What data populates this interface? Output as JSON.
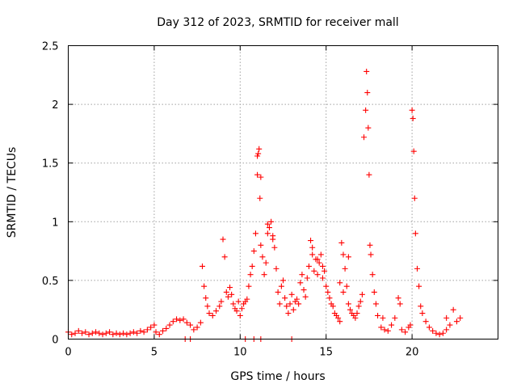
{
  "chart_data": {
    "type": "scatter",
    "title": "Day 312 of 2023, SRMTID for receiver mall",
    "xlabel": "GPS time / hours",
    "ylabel": "SRMTID / TECUs",
    "xlim": [
      0,
      25
    ],
    "ylim": [
      0,
      2.5
    ],
    "xticks": [
      0,
      5,
      10,
      15,
      20
    ],
    "yticks": [
      0,
      0.5,
      1,
      1.5,
      2,
      2.5
    ],
    "xtick_labels": [
      "0",
      "5",
      "10",
      "15",
      "20"
    ],
    "ytick_labels": [
      "0",
      "0.5",
      "1",
      "1.5",
      "2",
      "2.5"
    ],
    "grid": true,
    "marker": "+",
    "series": [
      {
        "name": "SRMTID",
        "color": "#ff0000",
        "x": [
          0.0,
          0.2,
          0.4,
          0.6,
          0.8,
          1.0,
          1.2,
          1.4,
          1.6,
          1.8,
          2.0,
          2.2,
          2.4,
          2.6,
          2.8,
          3.0,
          3.2,
          3.4,
          3.6,
          3.8,
          4.0,
          4.2,
          4.4,
          4.6,
          4.8,
          5.0,
          5.1,
          5.3,
          5.5,
          5.7,
          5.9,
          6.1,
          6.3,
          6.5,
          6.7,
          6.9,
          7.1,
          7.3,
          7.5,
          7.7,
          7.8,
          7.9,
          8.0,
          8.1,
          8.2,
          8.4,
          8.6,
          8.8,
          8.9,
          9.0,
          9.1,
          9.2,
          9.3,
          9.4,
          9.5,
          9.6,
          9.7,
          9.8,
          9.9,
          10.0,
          10.1,
          10.2,
          10.3,
          10.4,
          10.5,
          10.6,
          10.7,
          10.8,
          10.9,
          11.0,
          11.05,
          11.1,
          11.15,
          11.2,
          11.3,
          11.4,
          11.5,
          11.6,
          11.7,
          11.8,
          11.9,
          12.0,
          12.1,
          12.2,
          12.3,
          12.4,
          12.5,
          12.6,
          12.7,
          12.8,
          12.9,
          13.0,
          13.1,
          13.2,
          13.3,
          13.4,
          13.5,
          13.6,
          13.7,
          13.8,
          13.9,
          14.0,
          14.1,
          14.2,
          14.3,
          14.4,
          14.5,
          14.6,
          14.7,
          14.8,
          14.9,
          15.0,
          15.1,
          15.2,
          15.3,
          15.4,
          15.5,
          15.6,
          15.7,
          15.8,
          15.9,
          16.0,
          16.1,
          16.2,
          16.3,
          16.4,
          16.5,
          16.6,
          16.7,
          16.8,
          16.9,
          17.0,
          17.1,
          17.2,
          17.3,
          17.35,
          17.4,
          17.45,
          17.5,
          17.55,
          17.6,
          17.7,
          17.8,
          17.9,
          18.0,
          18.2,
          18.4,
          18.6,
          18.8,
          19.0,
          19.2,
          19.4,
          19.6,
          19.8,
          19.9,
          20.0,
          20.05,
          20.1,
          20.15,
          20.2,
          20.3,
          20.4,
          20.5,
          20.6,
          20.8,
          21.0,
          21.2,
          21.4,
          21.6,
          21.8,
          22.0,
          22.2,
          22.4,
          22.6,
          22.8,
          6.8,
          7.1,
          10.3,
          10.8,
          11.2,
          13.0,
          11.0,
          11.2,
          11.6,
          11.9,
          14.2,
          14.5,
          14.8,
          15.8,
          16.0,
          16.3,
          18.3,
          19.3,
          22.0
        ],
        "y": [
          0.06,
          0.04,
          0.05,
          0.07,
          0.05,
          0.06,
          0.04,
          0.05,
          0.06,
          0.05,
          0.04,
          0.05,
          0.06,
          0.04,
          0.05,
          0.04,
          0.05,
          0.04,
          0.05,
          0.06,
          0.05,
          0.07,
          0.06,
          0.08,
          0.1,
          0.12,
          0.06,
          0.04,
          0.07,
          0.09,
          0.12,
          0.15,
          0.17,
          0.16,
          0.17,
          0.14,
          0.12,
          0.08,
          0.1,
          0.14,
          0.62,
          0.45,
          0.35,
          0.28,
          0.22,
          0.2,
          0.24,
          0.28,
          0.32,
          0.85,
          0.7,
          0.4,
          0.36,
          0.44,
          0.38,
          0.3,
          0.26,
          0.24,
          0.32,
          0.2,
          0.26,
          0.3,
          0.32,
          0.34,
          0.45,
          0.55,
          0.62,
          0.75,
          0.9,
          1.4,
          1.58,
          1.62,
          1.2,
          0.8,
          0.7,
          0.55,
          0.65,
          0.9,
          0.95,
          1.0,
          0.85,
          0.78,
          0.6,
          0.4,
          0.3,
          0.45,
          0.5,
          0.35,
          0.28,
          0.22,
          0.3,
          0.38,
          0.25,
          0.32,
          0.34,
          0.3,
          0.48,
          0.55,
          0.42,
          0.36,
          0.52,
          0.62,
          0.84,
          0.72,
          0.58,
          0.68,
          0.55,
          0.65,
          0.72,
          0.62,
          0.58,
          0.45,
          0.4,
          0.35,
          0.3,
          0.28,
          0.22,
          0.2,
          0.18,
          0.15,
          0.82,
          0.72,
          0.6,
          0.45,
          0.3,
          0.25,
          0.22,
          0.2,
          0.18,
          0.22,
          0.28,
          0.32,
          0.38,
          1.72,
          1.95,
          2.28,
          2.1,
          1.8,
          1.4,
          0.8,
          0.72,
          0.55,
          0.4,
          0.3,
          0.2,
          0.1,
          0.08,
          0.07,
          0.12,
          0.18,
          0.35,
          0.08,
          0.06,
          0.1,
          0.12,
          1.95,
          1.88,
          1.6,
          1.2,
          0.9,
          0.6,
          0.45,
          0.28,
          0.22,
          0.15,
          0.1,
          0.07,
          0.05,
          0.04,
          0.05,
          0.08,
          0.12,
          0.25,
          0.15,
          0.18,
          0.0,
          0.0,
          0.0,
          0.0,
          0.0,
          0.0,
          1.56,
          1.38,
          0.98,
          0.88,
          0.78,
          0.68,
          0.52,
          0.48,
          0.4,
          0.7,
          0.18,
          0.3,
          0.18
        ]
      }
    ]
  }
}
